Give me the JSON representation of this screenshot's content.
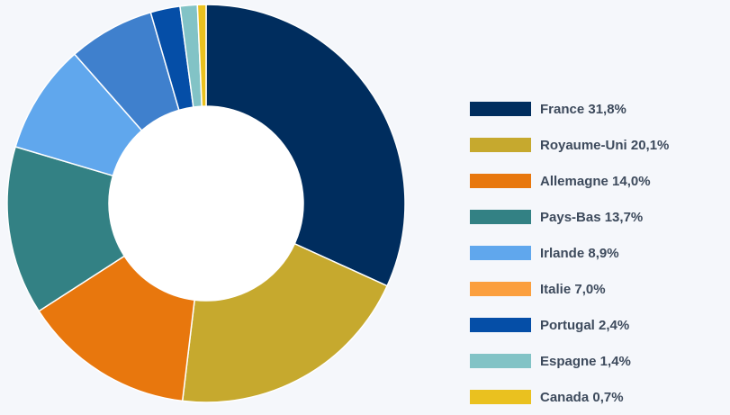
{
  "chart_data": {
    "type": "pie",
    "donut": true,
    "categories": [
      "France",
      "Royaume-Uni",
      "Allemagne",
      "Pays-Bas",
      "Irlande",
      "Italie",
      "Portugal",
      "Espagne",
      "Canada"
    ],
    "values": [
      31.8,
      20.1,
      14.0,
      13.7,
      8.9,
      7.0,
      2.4,
      1.4,
      0.7
    ],
    "colors": [
      "#002d5e",
      "#c6a92e",
      "#e8770d",
      "#338184",
      "#60a7ed",
      "#3f80cd",
      "#054ea7",
      "#82c3c6",
      "#eac11f"
    ],
    "legend_position": "right",
    "legend": {
      "items": [
        {
          "label": "France 31,8%",
          "color": "#002d5e"
        },
        {
          "label": "Royaume-Uni 20,1%",
          "color": "#c6a92e"
        },
        {
          "label": "Allemagne 14,0%",
          "color": "#e8770d"
        },
        {
          "label": "Pays-Bas 13,7%",
          "color": "#338184"
        },
        {
          "label": "Irlande 8,9%",
          "color": "#60a7ed"
        },
        {
          "label": "Italie 7,0%",
          "color": "#fb9f3e"
        },
        {
          "label": "Portugal 2,4%",
          "color": "#054ea7"
        },
        {
          "label": "Espagne 1,4%",
          "color": "#82c3c6"
        },
        {
          "label": "Canada 0,7%",
          "color": "#eac11f"
        }
      ]
    }
  }
}
